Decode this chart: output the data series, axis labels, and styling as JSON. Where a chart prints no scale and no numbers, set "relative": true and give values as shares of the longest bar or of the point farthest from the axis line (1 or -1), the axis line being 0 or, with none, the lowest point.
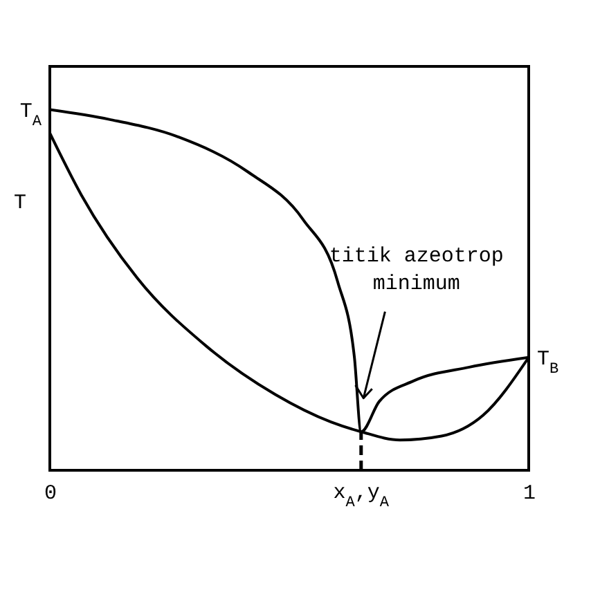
{
  "chart_data": {
    "type": "line",
    "relative": true,
    "ylabel": "T",
    "xlim": [
      0,
      1
    ],
    "xticks": [
      0,
      1
    ],
    "series": [
      {
        "color": "#000000",
        "x": [
          0,
          0.124,
          0.269,
          0.413,
          0.529,
          0.601,
          0.636,
          0.65,
          0.688,
          0.76,
          0.876,
          1
        ],
        "values": [
          1,
          0.973,
          0.924,
          0.828,
          0.695,
          0.523,
          0.313,
          0.107,
          0.191,
          0.248,
          0.286,
          0.313
        ]
      },
      {
        "color": "#000000",
        "x": [
          0,
          0.066,
          0.182,
          0.327,
          0.471,
          0.587,
          0.65,
          0.731,
          0.818,
          0.905,
          1
        ],
        "values": [
          0.935,
          0.763,
          0.534,
          0.344,
          0.21,
          0.134,
          0.107,
          0.084,
          0.095,
          0.153,
          0.313
        ]
      }
    ],
    "ref_lines": [
      {
        "axis": "x",
        "value": 0.65,
        "label": "x$_{A}$,y$_{A}$",
        "line_style": "dashed"
      }
    ],
    "annotations": [
      {
        "text": "T$_{A}$",
        "x": 0,
        "y": 1
      },
      {
        "text": "T$_{B}$",
        "x": 1,
        "y": 0.313
      },
      "titik azeotrop\nminimum"
    ]
  }
}
